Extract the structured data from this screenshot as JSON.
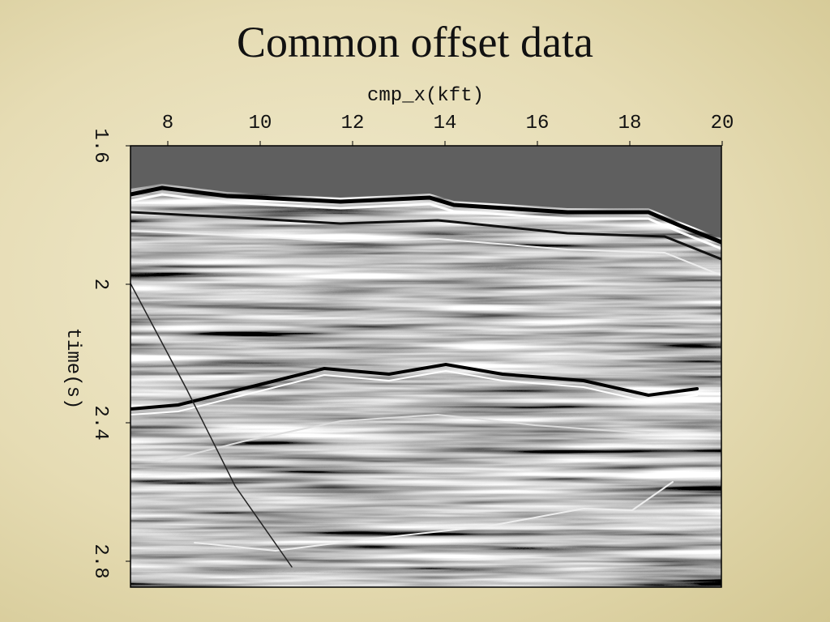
{
  "slide": {
    "title": "Common offset data",
    "plot": {
      "x_label": "cmp_x(kft)",
      "x_ticks": [
        "8",
        "10",
        "12",
        "14",
        "16",
        "18",
        "20"
      ],
      "y_label": "time(s)",
      "y_ticks": [
        "1.6",
        "2",
        "2.4",
        "2.8"
      ]
    }
  }
}
